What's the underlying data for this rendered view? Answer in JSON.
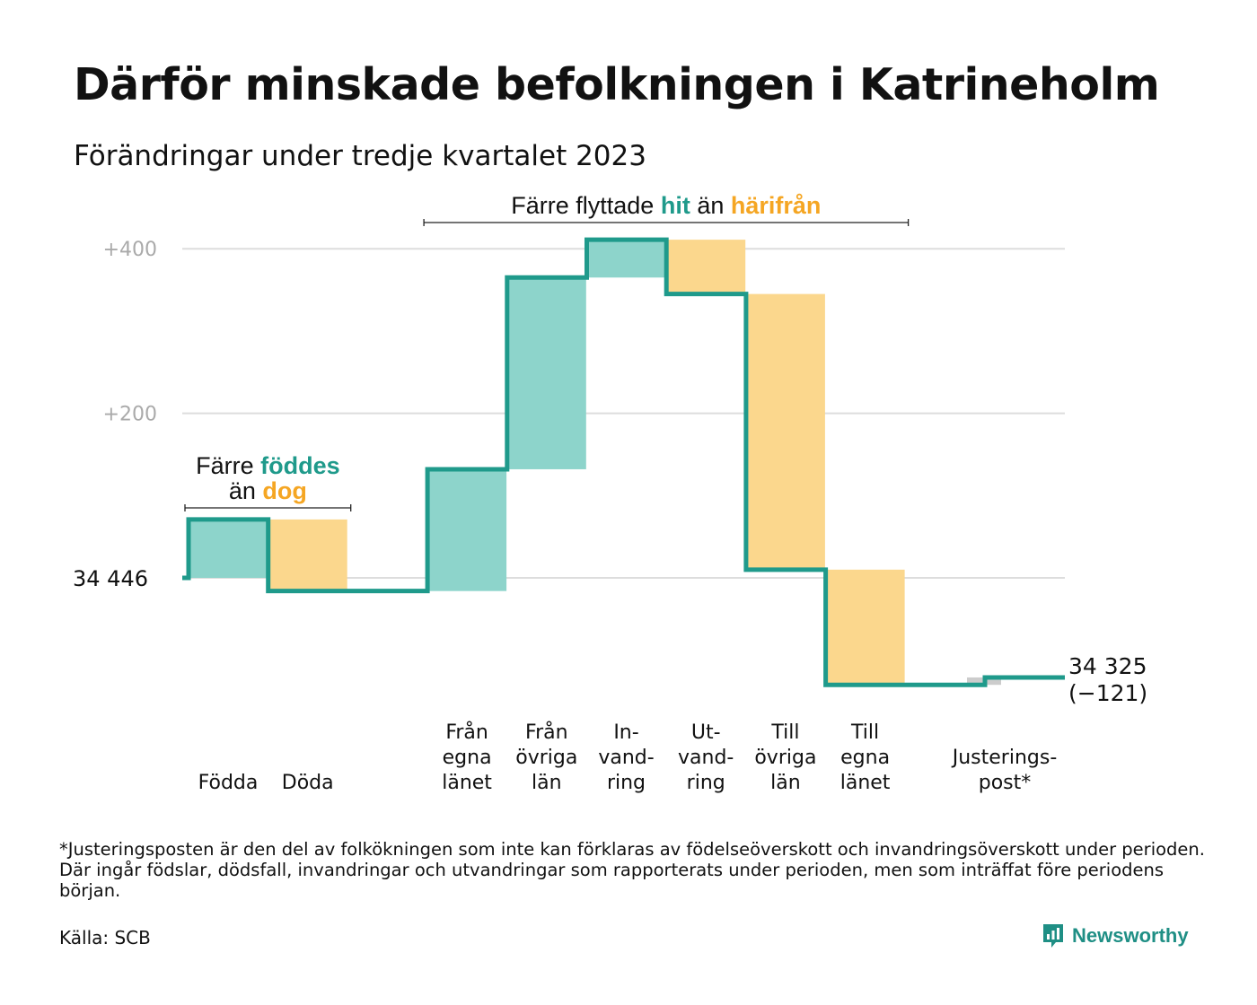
{
  "title": "Därför minskade befolkningen i Katrineholm",
  "subtitle": "Förändringar under tredje kvartalet 2023",
  "footnote": "*Justeringsposten är den del av folkökningen som inte kan förklaras av födelseöverskott och invandringsöverskott under perioden. Där ingår födslar, dödsfall, invandringar och utvandringar som rapporterats under perioden, men som inträffat före periodens början.",
  "source": "Källa: SCB",
  "brand": {
    "name": "Newsworthy",
    "icon": "newsworthy-logo-icon"
  },
  "colors": {
    "increase": "#8dd4cb",
    "decrease": "#fbd78d",
    "adjustment": "#cccccc",
    "line": "#1f9a8b",
    "accent_orange": "#f5a623",
    "grid": "#dddddd"
  },
  "chart_data": {
    "type": "waterfall",
    "start_value": 34446,
    "start_label": "34  446",
    "end_label_lines": [
      "34 325",
      "(−121)"
    ],
    "y_tick_labels": [
      {
        "value": 200,
        "label": "+200"
      },
      {
        "value": 400,
        "label": "+400"
      }
    ],
    "ylim": [
      -135,
      410
    ],
    "steps": [
      {
        "label_lines": [
          "Födda"
        ],
        "delta": 71,
        "kind": "increase"
      },
      {
        "label_lines": [
          "Döda"
        ],
        "delta": -87,
        "kind": "decrease"
      },
      {
        "label_lines": [
          "Från",
          "egna",
          "länet"
        ],
        "delta": 148,
        "kind": "increase"
      },
      {
        "label_lines": [
          "Från",
          "övriga",
          "län"
        ],
        "delta": 233,
        "kind": "increase"
      },
      {
        "label_lines": [
          "In-",
          "vand-",
          "ring"
        ],
        "delta": 46,
        "kind": "increase"
      },
      {
        "label_lines": [
          "Ut-",
          "vand-",
          "ring"
        ],
        "delta": -66,
        "kind": "decrease"
      },
      {
        "label_lines": [
          "Till",
          "övriga",
          "län"
        ],
        "delta": -335,
        "kind": "decrease"
      },
      {
        "label_lines": [
          "Till",
          "egna",
          "länet"
        ],
        "delta": -140,
        "kind": "decrease"
      },
      {
        "label_lines": [
          "Justerings-",
          "post*"
        ],
        "delta": 9,
        "kind": "adjustment"
      }
    ],
    "annotations": [
      {
        "id": "births",
        "first_step": 0,
        "last_step": 1,
        "lines": [
          [
            {
              "text": "Färre ",
              "style": "plain"
            },
            {
              "text": "föddes",
              "style": "teal"
            }
          ],
          [
            {
              "text": "än ",
              "style": "plain"
            },
            {
              "text": "dog",
              "style": "orange"
            }
          ]
        ]
      },
      {
        "id": "migration",
        "first_step": 2,
        "last_step": 7,
        "lines": [
          [
            {
              "text": "Färre flyttade ",
              "style": "plain"
            },
            {
              "text": "hit",
              "style": "teal"
            },
            {
              "text": " än ",
              "style": "plain"
            },
            {
              "text": "härifrån",
              "style": "orange"
            }
          ]
        ]
      }
    ]
  }
}
